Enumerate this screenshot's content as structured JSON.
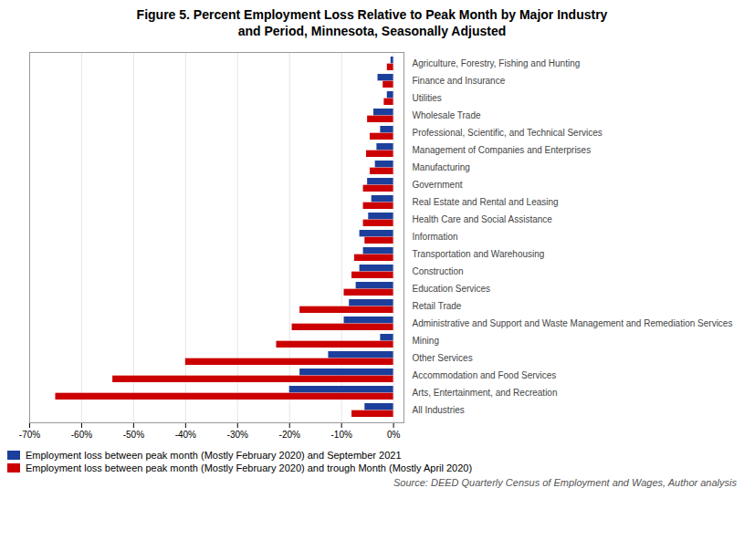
{
  "chart_data": {
    "type": "bar",
    "orientation": "horizontal",
    "title": "Figure 5. Percent Employment Loss Relative to Peak Month by Major Industry\nand Period, Minnesota, Seasonally Adjusted",
    "categories": [
      "Agriculture, Forestry, Fishing and Hunting",
      "Finance and Insurance",
      "Utilities",
      "Wholesale Trade",
      "Professional, Scientific, and Technical Services",
      "Management of Companies and Enterprises",
      "Manufacturing",
      "Government",
      "Real Estate and Rental and Leasing",
      "Health Care and Social Assistance",
      "Information",
      "Transportation and Warehousing",
      "Construction",
      "Education Services",
      "Retail Trade",
      "Administrative and Support and Waste Management and Remediation Services",
      "Mining",
      "Other Services",
      "Accommodation and Food Services",
      "Arts, Entertainment, and Recreation",
      "All Industries"
    ],
    "series": [
      {
        "name": "Employment loss between peak month (Mostly February 2020) and September 2021",
        "color": "#1C3F9B",
        "values": [
          -0.5,
          -3.0,
          -1.2,
          -3.8,
          -2.5,
          -3.2,
          -3.5,
          -5.0,
          -4.2,
          -4.8,
          -6.5,
          -5.8,
          -6.5,
          -7.2,
          -8.5,
          -9.5,
          -2.5,
          -12.5,
          -18.0,
          -20.0,
          -5.5
        ]
      },
      {
        "name": "Employment loss between peak month (Mostly February 2020) and trough Month (Mostly April 2020)",
        "color": "#CC0000",
        "values": [
          -1.2,
          -2.0,
          -1.8,
          -5.0,
          -4.5,
          -5.2,
          -4.5,
          -5.8,
          -5.8,
          -5.8,
          -5.5,
          -7.5,
          -8.0,
          -9.5,
          -18.0,
          -19.5,
          -22.5,
          -40.0,
          -54.0,
          -65.0,
          -8.0
        ]
      }
    ],
    "xlim": [
      -70,
      2
    ],
    "xticks": [
      {
        "value": -70,
        "label": "-70%"
      },
      {
        "value": -60,
        "label": "-60%"
      },
      {
        "value": -50,
        "label": "-50%"
      },
      {
        "value": -40,
        "label": "-40%"
      },
      {
        "value": -30,
        "label": "-30%"
      },
      {
        "value": -20,
        "label": "-20%"
      },
      {
        "value": -10,
        "label": "-10%"
      },
      {
        "value": 0,
        "label": "0%"
      }
    ],
    "grid": true,
    "legend": "bottom",
    "annotations": [
      "Source: DEED Quarterly Census of Employment and Wages, Author analysis"
    ]
  }
}
